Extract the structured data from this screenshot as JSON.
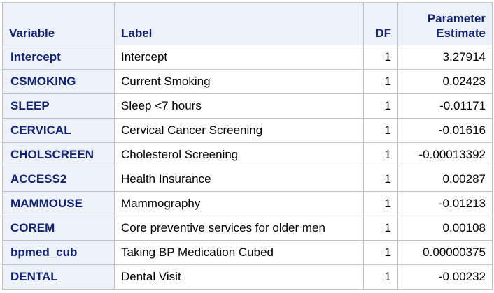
{
  "table": {
    "headers": {
      "variable": "Variable",
      "label": "Label",
      "df": "DF",
      "estimate_line1": "Parameter",
      "estimate_line2": "Estimate"
    },
    "rows": [
      {
        "variable": "Intercept",
        "label": "Intercept",
        "df": "1",
        "estimate": "3.27914"
      },
      {
        "variable": "CSMOKING",
        "label": "Current Smoking",
        "df": "1",
        "estimate": "0.02423"
      },
      {
        "variable": "SLEEP",
        "label": "Sleep <7 hours",
        "df": "1",
        "estimate": "-0.01171"
      },
      {
        "variable": "CERVICAL",
        "label": "Cervical Cancer Screening",
        "df": "1",
        "estimate": "-0.01616"
      },
      {
        "variable": "CHOLSCREEN",
        "label": "Cholesterol Screening",
        "df": "1",
        "estimate": "-0.00013392"
      },
      {
        "variable": "ACCESS2",
        "label": "Health Insurance",
        "df": "1",
        "estimate": "0.00287"
      },
      {
        "variable": "MAMMOUSE",
        "label": "Mammography",
        "df": "1",
        "estimate": "-0.01213"
      },
      {
        "variable": "COREM",
        "label": "Core preventive services for older men",
        "df": "1",
        "estimate": "0.00108"
      },
      {
        "variable": "bpmed_cub",
        "label": "Taking BP Medication Cubed",
        "df": "1",
        "estimate": "0.00000375"
      },
      {
        "variable": "DENTAL",
        "label": "Dental Visit",
        "df": "1",
        "estimate": "-0.00232"
      }
    ]
  },
  "colors": {
    "header_background": "#edf2f9",
    "header_text": "#112277",
    "grid_border": "#c1c1c1",
    "cell_background": "#ffffff"
  }
}
